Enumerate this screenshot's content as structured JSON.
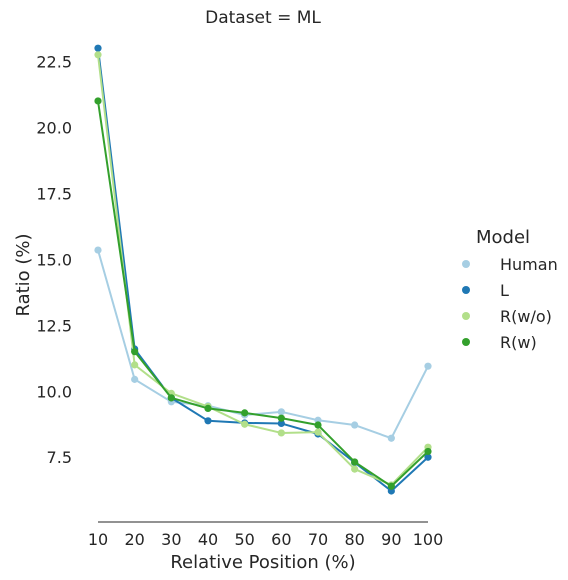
{
  "chart_data": {
    "type": "line",
    "title": "Dataset = ML",
    "xlabel": "Relative Position (%)",
    "ylabel": "Ratio (%)",
    "x": [
      10,
      20,
      30,
      40,
      50,
      60,
      70,
      80,
      90,
      100
    ],
    "x_ticks": [
      "10",
      "20",
      "30",
      "40",
      "50",
      "60",
      "70",
      "80",
      "90",
      "100"
    ],
    "y_ticks": [
      7.5,
      10.0,
      12.5,
      15.0,
      17.5,
      20.0,
      22.5
    ],
    "y_tick_labels": [
      "7.5",
      "10.0",
      "12.5",
      "15.0",
      "17.5",
      "20.0",
      "22.5"
    ],
    "ylim": [
      5.5,
      23.5
    ],
    "xlim": [
      10,
      100
    ],
    "grid": false,
    "legend": {
      "title": "Model",
      "placement": "right"
    },
    "series": [
      {
        "name": "Human",
        "color": "#a6cee3",
        "values": [
          15.35,
          10.45,
          9.6,
          9.45,
          9.1,
          9.22,
          8.9,
          8.72,
          8.22,
          10.95
        ]
      },
      {
        "name": "L",
        "color": "#1f78b4",
        "values": [
          23.0,
          11.6,
          9.75,
          8.88,
          8.8,
          8.78,
          8.38,
          7.3,
          6.22,
          7.5
        ]
      },
      {
        "name": "R(w/o)",
        "color": "#b2df8a",
        "values": [
          22.75,
          11.0,
          9.92,
          9.42,
          8.75,
          8.42,
          8.45,
          7.05,
          6.45,
          7.88
        ]
      },
      {
        "name": "R(w)",
        "color": "#33a02c",
        "values": [
          21.0,
          11.5,
          9.75,
          9.35,
          9.18,
          8.98,
          8.72,
          7.32,
          6.4,
          7.72
        ]
      }
    ]
  }
}
